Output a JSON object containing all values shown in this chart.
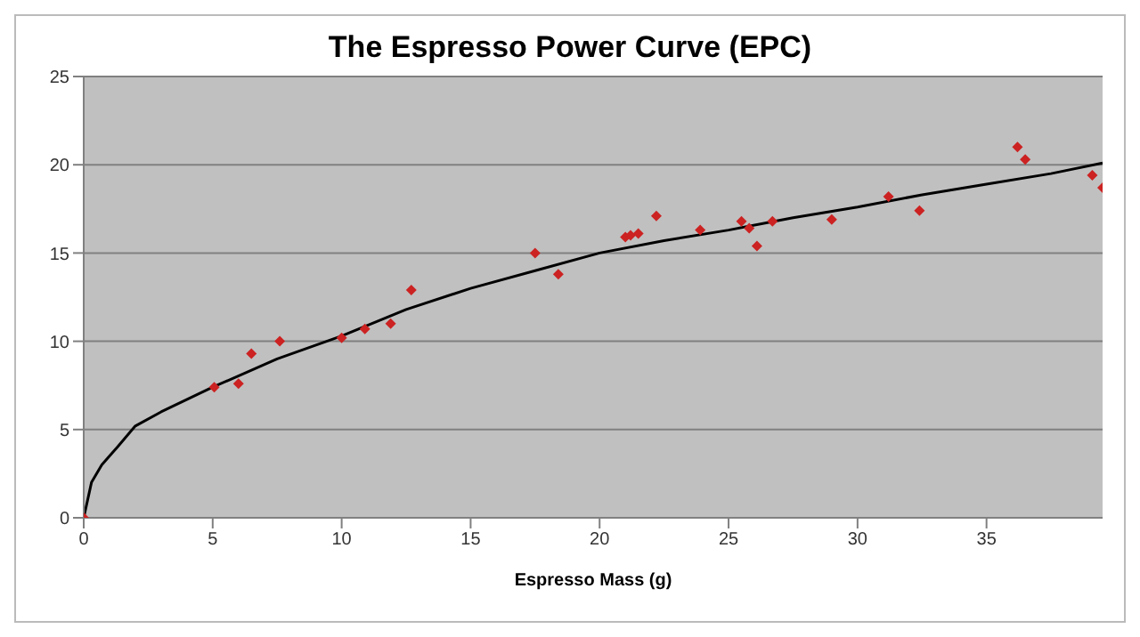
{
  "chart_data": {
    "type": "scatter",
    "title": "The Espresso Power Curve (EPC)",
    "xlabel": "Espresso Mass (g)",
    "xlim": [
      0,
      39.5
    ],
    "xticks": [
      0,
      5,
      10,
      15,
      20,
      25,
      30,
      35
    ],
    "ylim": [
      0,
      25
    ],
    "yticks": [
      0,
      5,
      10,
      15,
      20,
      25
    ],
    "grid": "y",
    "legend": false,
    "marker": "diamond",
    "series": [
      {
        "color": "#cc2222",
        "x": [
          0,
          5.06,
          6.0,
          6.5,
          7.6,
          10.0,
          10.9,
          11.9,
          12.7,
          17.5,
          18.4,
          21.0,
          21.2,
          21.5,
          22.2,
          23.9,
          25.5,
          25.8,
          26.1,
          26.7,
          29.0,
          31.2,
          32.4,
          36.2,
          36.5,
          39.1,
          39.5
        ],
        "values": [
          0,
          7.4,
          7.6,
          9.3,
          10.0,
          10.2,
          10.7,
          11.0,
          12.9,
          15.0,
          13.8,
          15.9,
          16.0,
          16.1,
          17.1,
          16.3,
          16.8,
          16.4,
          15.4,
          16.8,
          16.9,
          18.2,
          17.4,
          21.0,
          20.3,
          19.4,
          18.7
        ]
      },
      {
        "type": "line",
        "color": "#000000",
        "marker": "none",
        "x": [
          0,
          0.3,
          0.7,
          1.3,
          2,
          3,
          5,
          7.5,
          10,
          12.5,
          15,
          17.5,
          20,
          22.5,
          25,
          27.5,
          30,
          32.5,
          35,
          37.5,
          39.5
        ],
        "values": [
          0,
          2,
          3,
          4,
          5.2,
          6,
          7.4,
          9,
          10.3,
          11.8,
          13,
          14,
          15,
          15.7,
          16.3,
          17,
          17.6,
          18.3,
          18.9,
          19.5,
          20.1
        ]
      }
    ]
  }
}
